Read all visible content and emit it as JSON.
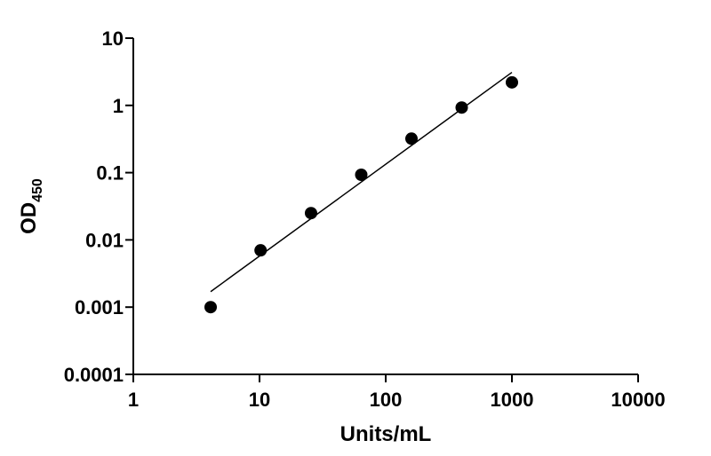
{
  "chart_data": {
    "type": "scatter",
    "xlabel": "Units/mL",
    "ylabel": {
      "main": "OD",
      "subscript": "450"
    },
    "xscale": "log",
    "yscale": "log",
    "xlim": [
      1,
      10000
    ],
    "ylim": [
      0.0001,
      10
    ],
    "x_ticks": [
      1,
      10,
      100,
      1000,
      10000
    ],
    "x_tick_labels": [
      "1",
      "10",
      "100",
      "1000",
      "10000"
    ],
    "y_ticks": [
      0.0001,
      0.001,
      0.01,
      0.1,
      1,
      10
    ],
    "y_tick_labels": [
      "0.0001",
      "0.001",
      "0.01",
      "0.1",
      "1",
      "10"
    ],
    "grid": false,
    "series": [
      {
        "x": [
          4.1,
          10.2,
          25.6,
          64,
          160,
          400,
          1000
        ],
        "y": [
          0.001,
          0.007,
          0.025,
          0.093,
          0.32,
          0.93,
          2.2
        ],
        "marker": "circle",
        "color": "#000000"
      }
    ],
    "fit_line": {
      "x": [
        4.1,
        1000
      ],
      "y": [
        0.0017,
        3.1
      ],
      "color": "#000000"
    }
  }
}
